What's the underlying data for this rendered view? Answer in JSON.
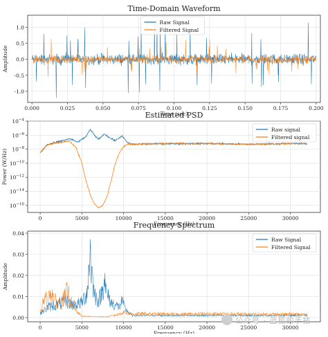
{
  "chart_data": [
    {
      "type": "line",
      "title": "Time-Domain Waveform",
      "xlabel": "Time (sec)",
      "ylabel": "Amplitude",
      "xlim": [
        -0.003,
        0.203
      ],
      "ylim": [
        -1.35,
        1.38
      ],
      "x_ticks": [
        "0.000",
        "0.025",
        "0.050",
        "0.075",
        "0.100",
        "0.125",
        "0.150",
        "0.175",
        "0.200"
      ],
      "y_ticks": [
        "-1.0",
        "-0.5",
        "0.0",
        "0.5",
        "1.0"
      ],
      "grid": true,
      "legend_position": "top-center",
      "series": [
        {
          "name": "Raw Signal",
          "color": "#1f77b4",
          "x_range": [
            0.0,
            0.2
          ],
          "typical_amplitude": 0.25,
          "peak_max": 1.15,
          "peak_min": -1.22
        },
        {
          "name": "Filtered Signal",
          "color": "#ff7f0e",
          "x_range": [
            0.0,
            0.2
          ],
          "typical_amplitude": 0.18,
          "peak_max": 0.65,
          "peak_min": -0.55
        }
      ]
    },
    {
      "type": "line",
      "title": "Estimated PSD",
      "xlabel": "Frequency (Hz)",
      "ylabel": "Power (W/Hz)",
      "xlim": [
        -1500,
        33600
      ],
      "ylog": true,
      "ylim_exp": [
        -17,
        -4
      ],
      "x_ticks": [
        "0",
        "5000",
        "10000",
        "15000",
        "20000",
        "25000",
        "30000"
      ],
      "y_tick_exps": [
        -4,
        -6,
        -8,
        -10,
        -12,
        -14,
        -16
      ],
      "grid": true,
      "legend_position": "top-right",
      "series": [
        {
          "name": "Raw signal",
          "color": "#1f77b4",
          "points_exp": [
            [
              0,
              -8.5
            ],
            [
              800,
              -7.4
            ],
            [
              2000,
              -7.0
            ],
            [
              3500,
              -6.5
            ],
            [
              4500,
              -7.0
            ],
            [
              5500,
              -6.2
            ],
            [
              6000,
              -5.2
            ],
            [
              6500,
              -6.0
            ],
            [
              7000,
              -6.6
            ],
            [
              7700,
              -5.8
            ],
            [
              8200,
              -6.3
            ],
            [
              9000,
              -6.8
            ],
            [
              9800,
              -6.1
            ],
            [
              10400,
              -7.0
            ],
            [
              11000,
              -7.3
            ],
            [
              15000,
              -7.2
            ],
            [
              20000,
              -7.2
            ],
            [
              25000,
              -7.3
            ],
            [
              30000,
              -7.2
            ],
            [
              32000,
              -7.2
            ]
          ]
        },
        {
          "name": "Filtered signal",
          "color": "#ff7f0e",
          "points_exp": [
            [
              0,
              -8.5
            ],
            [
              800,
              -7.4
            ],
            [
              2000,
              -7.1
            ],
            [
              3500,
              -6.8
            ],
            [
              4300,
              -7.8
            ],
            [
              5000,
              -10.0
            ],
            [
              5500,
              -12.5
            ],
            [
              6000,
              -14.5
            ],
            [
              6500,
              -15.8
            ],
            [
              7000,
              -16.3
            ],
            [
              7500,
              -16.0
            ],
            [
              8000,
              -14.8
            ],
            [
              8500,
              -12.5
            ],
            [
              9000,
              -10.0
            ],
            [
              9500,
              -8.5
            ],
            [
              10000,
              -7.6
            ],
            [
              10500,
              -7.3
            ],
            [
              15000,
              -7.2
            ],
            [
              20000,
              -7.2
            ],
            [
              25000,
              -7.3
            ],
            [
              30000,
              -7.2
            ],
            [
              32000,
              -7.2
            ]
          ]
        }
      ]
    },
    {
      "type": "line",
      "title": "Frequency Spectrum",
      "xlabel": "Frequency (Hz)",
      "ylabel": "Amplitude",
      "xlim": [
        -1500,
        33600
      ],
      "ylim": [
        -0.002,
        0.041
      ],
      "x_ticks": [
        "0",
        "5000",
        "10000",
        "15000",
        "20000",
        "25000",
        "30000"
      ],
      "y_ticks": [
        "0.00",
        "0.01",
        "0.02",
        "0.03",
        "0.04"
      ],
      "grid": true,
      "legend_position": "top-right",
      "series": [
        {
          "name": "Raw Signal",
          "color": "#1f77b4",
          "points": [
            [
              0,
              0.002
            ],
            [
              1000,
              0.005
            ],
            [
              2000,
              0.006
            ],
            [
              3000,
              0.008
            ],
            [
              4000,
              0.006
            ],
            [
              5000,
              0.007
            ],
            [
              5600,
              0.012
            ],
            [
              5900,
              0.024
            ],
            [
              6000,
              0.038
            ],
            [
              6100,
              0.024
            ],
            [
              6500,
              0.011
            ],
            [
              7000,
              0.008
            ],
            [
              7500,
              0.013
            ],
            [
              7700,
              0.021
            ],
            [
              7900,
              0.012
            ],
            [
              8500,
              0.007
            ],
            [
              9500,
              0.005
            ],
            [
              9800,
              0.008
            ],
            [
              10200,
              0.004
            ],
            [
              11000,
              0.001
            ],
            [
              20000,
              0.001
            ],
            [
              32000,
              0.001
            ]
          ]
        },
        {
          "name": "Filtered Signal",
          "color": "#ff7f0e",
          "points": [
            [
              0,
              0.002
            ],
            [
              400,
              0.008
            ],
            [
              1000,
              0.009
            ],
            [
              1300,
              0.013
            ],
            [
              1700,
              0.008
            ],
            [
              2500,
              0.007
            ],
            [
              3000,
              0.01
            ],
            [
              3300,
              0.013
            ],
            [
              3600,
              0.008
            ],
            [
              4300,
              0.003
            ],
            [
              5000,
              0.0006
            ],
            [
              8000,
              0.0004
            ],
            [
              9400,
              0.0015
            ],
            [
              10000,
              0.0025
            ],
            [
              10800,
              0.0018
            ],
            [
              12000,
              0.0018
            ],
            [
              16000,
              0.0016
            ],
            [
              20000,
              0.0018
            ],
            [
              25000,
              0.0016
            ],
            [
              30000,
              0.0016
            ],
            [
              32000,
              0.0015
            ]
          ]
        }
      ]
    }
  ],
  "watermark": "公众号 · 蓝狐的手技"
}
